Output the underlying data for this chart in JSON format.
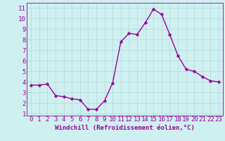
{
  "x": [
    0,
    1,
    2,
    3,
    4,
    5,
    6,
    7,
    8,
    9,
    10,
    11,
    12,
    13,
    14,
    15,
    16,
    17,
    18,
    19,
    20,
    21,
    22,
    23
  ],
  "y": [
    3.7,
    3.7,
    3.8,
    2.7,
    2.6,
    2.4,
    2.3,
    1.4,
    1.4,
    2.2,
    3.9,
    7.8,
    8.6,
    8.5,
    9.6,
    10.9,
    10.4,
    8.5,
    6.5,
    5.2,
    5.0,
    4.5,
    4.1,
    4.0
  ],
  "line_color": "#990099",
  "marker": "D",
  "marker_size": 2.2,
  "xlabel": "Windchill (Refroidissement éolien,°C)",
  "ylabel_ticks": [
    1,
    2,
    3,
    4,
    5,
    6,
    7,
    8,
    9,
    10,
    11
  ],
  "xlabel_ticks": [
    0,
    1,
    2,
    3,
    4,
    5,
    6,
    7,
    8,
    9,
    10,
    11,
    12,
    13,
    14,
    15,
    16,
    17,
    18,
    19,
    20,
    21,
    22,
    23
  ],
  "xlim": [
    -0.5,
    23.5
  ],
  "ylim": [
    0.8,
    11.5
  ],
  "background_color": "#cff0f0",
  "grid_color": "#b0d8d8",
  "xlabel_fontsize": 6.5,
  "tick_fontsize": 6.5,
  "linewidth": 1.0
}
